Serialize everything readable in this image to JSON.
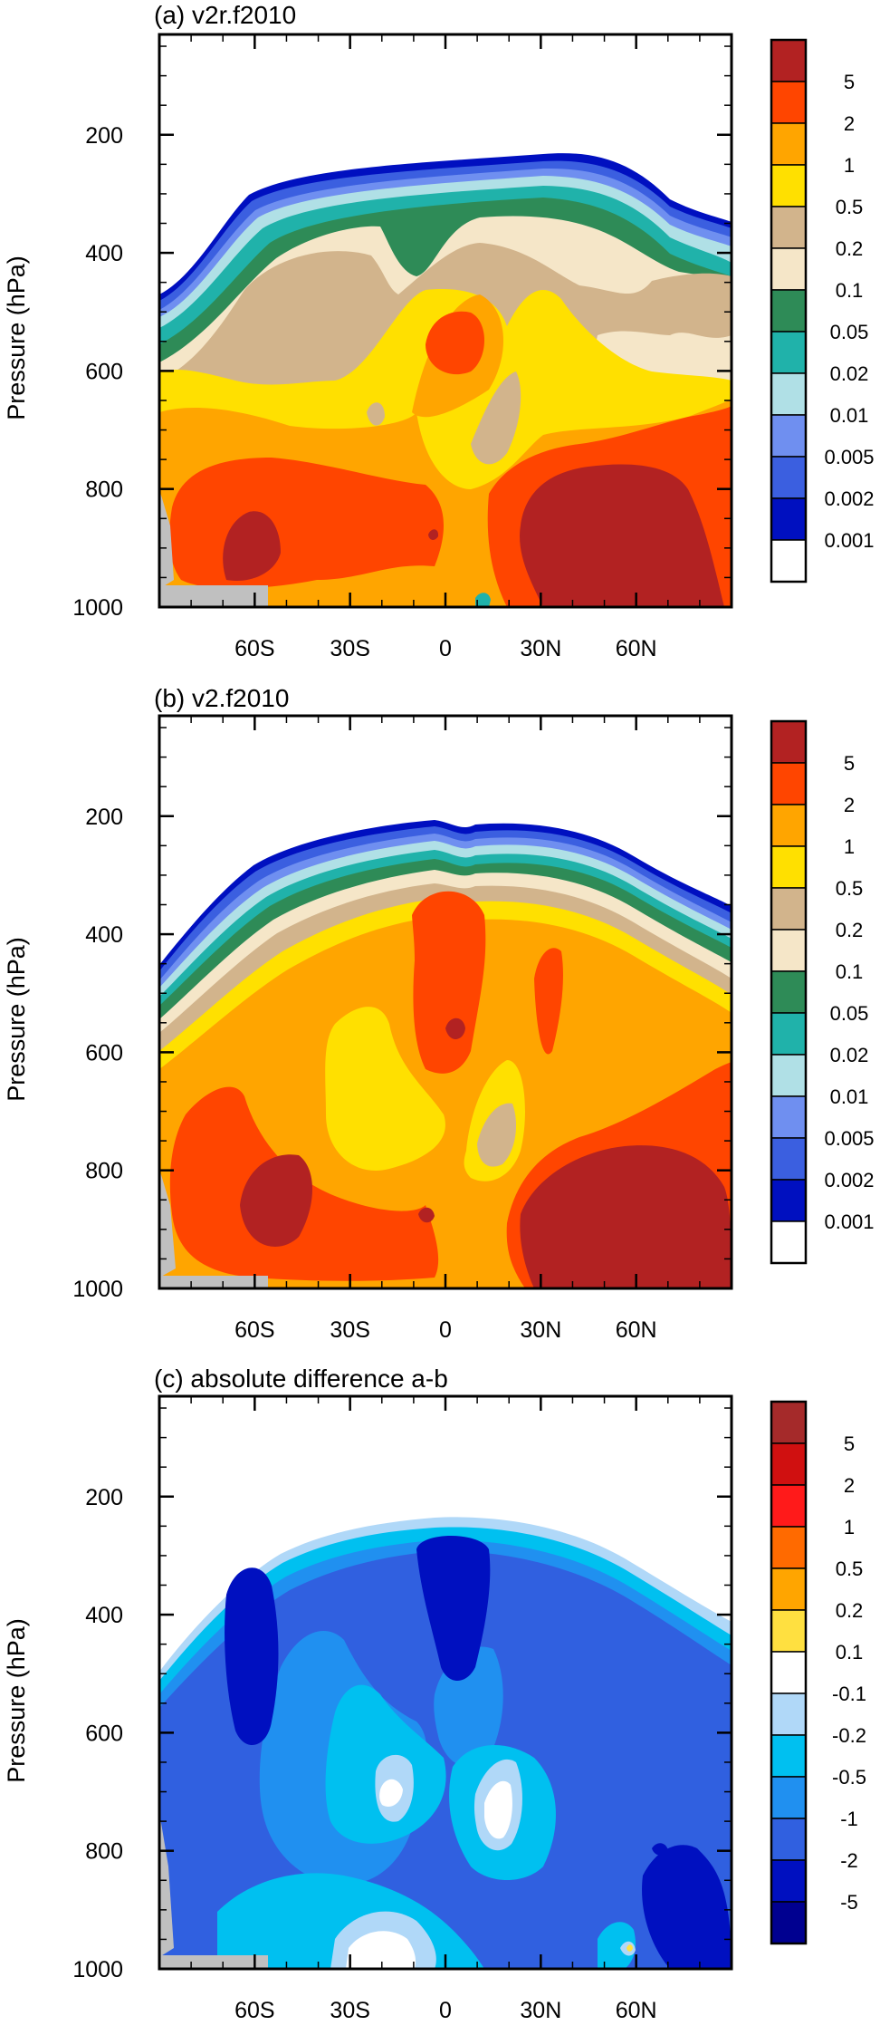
{
  "chart_data": [
    {
      "type": "contour",
      "title": "(a) v2r.f2010",
      "ylabel": "Pressure (hPa)",
      "y_ticks": [
        "200",
        "400",
        "600",
        "800",
        "1000"
      ],
      "x_ticks": [
        "60S",
        "30S",
        "0",
        "30N",
        "60N"
      ],
      "x_tick_values": [
        -60,
        -30,
        0,
        30,
        60
      ],
      "y_tick_values": [
        200,
        400,
        600,
        800,
        1000
      ],
      "xlim": [
        -90,
        90
      ],
      "ylim": [
        30,
        1000
      ],
      "colorbar": {
        "labels": [
          "5",
          "2",
          "1",
          "0.5",
          "0.2",
          "0.1",
          "0.05",
          "0.02",
          "0.01",
          "0.005",
          "0.002",
          "0.001"
        ],
        "colors": [
          "#b22222",
          "#ff4500",
          "#ffa500",
          "#ffe000",
          "#d2b48c",
          "#f5e6c8",
          "#2e8b57",
          "#20b2aa",
          "#b0e0e6",
          "#6f8ff0",
          "#3b5fe0",
          "#0010c0",
          "#ffffff"
        ]
      }
    },
    {
      "type": "contour",
      "title": "(b) v2.f2010",
      "ylabel": "Pressure (hPa)",
      "y_ticks": [
        "200",
        "400",
        "600",
        "800",
        "1000"
      ],
      "x_ticks": [
        "60S",
        "30S",
        "0",
        "30N",
        "60N"
      ],
      "x_tick_values": [
        -60,
        -30,
        0,
        30,
        60
      ],
      "y_tick_values": [
        200,
        400,
        600,
        800,
        1000
      ],
      "xlim": [
        -90,
        90
      ],
      "ylim": [
        30,
        1000
      ],
      "colorbar": {
        "labels": [
          "5",
          "2",
          "1",
          "0.5",
          "0.2",
          "0.1",
          "0.05",
          "0.02",
          "0.01",
          "0.005",
          "0.002",
          "0.001"
        ],
        "colors": [
          "#b22222",
          "#ff4500",
          "#ffa500",
          "#ffe000",
          "#d2b48c",
          "#f5e6c8",
          "#2e8b57",
          "#20b2aa",
          "#b0e0e6",
          "#6f8ff0",
          "#3b5fe0",
          "#0010c0",
          "#ffffff"
        ]
      }
    },
    {
      "type": "contour",
      "title": "(c) absolute difference a-b",
      "ylabel": "Pressure (hPa)",
      "y_ticks": [
        "200",
        "400",
        "600",
        "800",
        "1000"
      ],
      "x_ticks": [
        "60S",
        "30S",
        "0",
        "30N",
        "60N"
      ],
      "x_tick_values": [
        -60,
        -30,
        0,
        30,
        60
      ],
      "y_tick_values": [
        200,
        400,
        600,
        800,
        1000
      ],
      "xlim": [
        -90,
        90
      ],
      "ylim": [
        30,
        1000
      ],
      "colorbar": {
        "labels": [
          "5",
          "2",
          "1",
          "0.5",
          "0.2",
          "0.1",
          "-0.1",
          "-0.2",
          "-0.5",
          "-1",
          "-2",
          "-5"
        ],
        "colors": [
          "#a52a2a",
          "#d01010",
          "#ff1a1a",
          "#ff6a00",
          "#ffa500",
          "#ffe040",
          "#ffffff",
          "#b0d8f8",
          "#00c0f0",
          "#2090f0",
          "#3060e0",
          "#0010c0",
          "#000090"
        ]
      }
    }
  ]
}
